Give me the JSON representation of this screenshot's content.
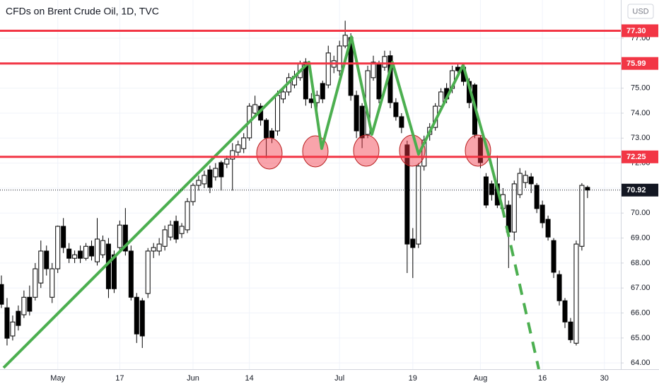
{
  "chart_data": {
    "type": "candlestick",
    "title": "CFDs on Brent Crude Oil, 1D, TVC",
    "unit": "USD",
    "categories": [
      null,
      null,
      null,
      null,
      null,
      null,
      null,
      null,
      null,
      null,
      "May",
      null,
      null,
      null,
      null,
      null,
      null,
      null,
      null,
      null,
      null,
      "17",
      null,
      null,
      null,
      null,
      null,
      null,
      null,
      null,
      null,
      null,
      null,
      null,
      "Jun",
      null,
      null,
      null,
      null,
      null,
      null,
      null,
      null,
      null,
      "14",
      null,
      null,
      null,
      null,
      null,
      null,
      null,
      null,
      null,
      null,
      null,
      null,
      null,
      null,
      null,
      "Jul",
      null,
      null,
      null,
      null,
      null,
      null,
      null,
      null,
      null,
      null,
      null,
      null,
      "19",
      null,
      null,
      null,
      null,
      null,
      null,
      null,
      null,
      null,
      null,
      null,
      "Aug",
      null,
      null,
      null,
      null,
      null,
      null,
      null,
      null,
      null,
      null,
      "16",
      null,
      null,
      null,
      null,
      null,
      null,
      null,
      null,
      null,
      null,
      "30",
      null,
      null
    ],
    "open": [
      67.14,
      66.21,
      65.08,
      66.07,
      65.93,
      66.63,
      66.63,
      67.2,
      68.48,
      66.63,
      67.77,
      69.47,
      68.56,
      68.19,
      68.48,
      68.19,
      68.67,
      68.05,
      68.33,
      68.76,
      68.33,
      68.62,
      69.52,
      68.48,
      66.63,
      66.49,
      66.78,
      68.48,
      68.48,
      68.67,
      69.04,
      69.67,
      69.18,
      69.33,
      70.46,
      71.11,
      71.17,
      71.73,
      71.45,
      72.02,
      71.96,
      72.16,
      72.44,
      72.58,
      73.01,
      74.0,
      74.28,
      73.72,
      73.29,
      73.29,
      74.57,
      74.85,
      75.13,
      75.42,
      76.04,
      74.57,
      74.42,
      75.19,
      75.13,
      75.84,
      75.7,
      76.69,
      77.03,
      74.71,
      74.28,
      73.15,
      75.42,
      75.98,
      75.84,
      76.3,
      74.42,
      73.86,
      72.73,
      68.96,
      68.76,
      71.88,
      73.15,
      73.43,
      74.28,
      74.99,
      74.99,
      75.84,
      75.84,
      75.27,
      75.13,
      73.01,
      71.45,
      71.17,
      71.17,
      70.18,
      70.32,
      69.24,
      70.74,
      71.22,
      71.45,
      71.11,
      70.32,
      69.75,
      68.9,
      67.54,
      66.49,
      65.64,
      64.79,
      68.67,
      71.03,
      null,
      null,
      null,
      null,
      null
    ],
    "high": [
      67.5,
      66.6,
      65.9,
      66.3,
      66.9,
      67.1,
      68.0,
      68.9,
      68.7,
      68.0,
      69.5,
      69.8,
      68.8,
      68.5,
      68.7,
      68.8,
      68.9,
      69.8,
      69.1,
      69.0,
      68.5,
      69.7,
      70.2,
      68.7,
      66.8,
      66.6,
      68.6,
      68.8,
      69.0,
      69.5,
      69.7,
      69.9,
      69.6,
      70.6,
      71.2,
      71.5,
      71.7,
      71.9,
      72.0,
      72.1,
      72.3,
      72.8,
      72.9,
      73.2,
      74.4,
      74.7,
      74.4,
      73.8,
      73.4,
      74.9,
      75.0,
      75.6,
      75.7,
      76.1,
      76.2,
      74.8,
      74.9,
      75.3,
      76.7,
      76.3,
      76.9,
      77.7,
      77.2,
      74.9,
      74.4,
      75.9,
      76.3,
      76.1,
      76.5,
      76.5,
      74.6,
      74.0,
      72.9,
      69.4,
      72.0,
      73.1,
      73.6,
      74.4,
      75.0,
      75.2,
      75.9,
      76.0,
      75.9,
      75.4,
      75.2,
      73.1,
      71.6,
      71.3,
      72.3,
      71.0,
      70.5,
      71.3,
      71.8,
      71.7,
      71.6,
      71.2,
      70.5,
      69.9,
      69.0,
      67.7,
      66.6,
      65.8,
      68.9,
      71.2,
      71.1,
      null,
      null,
      null,
      null,
      null
    ],
    "low": [
      66.2,
      64.7,
      64.9,
      65.3,
      65.8,
      65.9,
      66.5,
      67.0,
      67.5,
      66.4,
      67.6,
      68.4,
      68.0,
      68.0,
      68.0,
      68.1,
      68.1,
      67.9,
      68.2,
      66.6,
      66.8,
      68.4,
      68.3,
      66.5,
      64.8,
      64.6,
      66.6,
      68.2,
      68.3,
      68.5,
      68.9,
      68.8,
      69.0,
      69.2,
      70.3,
      70.9,
      71.0,
      70.8,
      71.3,
      70.9,
      71.8,
      70.9,
      72.3,
      72.4,
      72.9,
      73.9,
      73.5,
      72.2,
      72.8,
      73.1,
      74.4,
      74.7,
      75.0,
      75.3,
      74.3,
      74.2,
      74.0,
      74.4,
      75.0,
      75.6,
      75.5,
      76.6,
      74.5,
      73.0,
      72.6,
      73.0,
      75.3,
      74.4,
      75.7,
      74.2,
      73.7,
      73.2,
      67.6,
      67.4,
      68.6,
      71.7,
      72.9,
      73.3,
      74.1,
      74.4,
      74.8,
      75.5,
      75.1,
      74.2,
      73.0,
      71.8,
      70.2,
      70.5,
      70.2,
      70.0,
      67.8,
      68.9,
      70.6,
      71.0,
      70.8,
      70.0,
      69.4,
      68.9,
      67.4,
      66.3,
      65.4,
      64.8,
      64.7,
      68.5,
      70.6,
      null,
      null,
      null,
      null,
      null
    ],
    "close": [
      66.35,
      64.99,
      65.64,
      65.5,
      66.63,
      66.07,
      67.77,
      68.48,
      67.77,
      67.77,
      69.47,
      68.62,
      68.19,
      68.33,
      68.19,
      68.67,
      68.28,
      68.96,
      68.9,
      66.97,
      66.97,
      69.52,
      68.48,
      66.63,
      65.16,
      65.08,
      68.48,
      68.62,
      68.76,
      69.33,
      69.52,
      68.96,
      69.47,
      70.46,
      71.11,
      71.31,
      71.51,
      71.03,
      71.79,
      71.45,
      72.16,
      72.5,
      72.73,
      73.01,
      74.28,
      74.34,
      73.72,
      73.01,
      73.01,
      74.71,
      74.85,
      75.42,
      75.47,
      75.98,
      74.57,
      74.42,
      74.71,
      74.57,
      76.41,
      76.1,
      76.69,
      77.12,
      74.71,
      73.29,
      73.01,
      75.7,
      76.04,
      74.57,
      76.27,
      74.42,
      73.86,
      73.43,
      68.76,
      68.62,
      71.88,
      72.92,
      73.43,
      74.28,
      74.85,
      74.57,
      75.7,
      75.7,
      75.27,
      74.42,
      73.15,
      72.02,
      70.32,
      70.74,
      70.32,
      70.74,
      69.24,
      71.17,
      71.59,
      71.51,
      71.17,
      70.18,
      69.61,
      69.04,
      67.63,
      66.49,
      65.64,
      64.93,
      68.76,
      71.11,
      70.92,
      null,
      null,
      null,
      null,
      null
    ],
    "up_color": "#ffffff",
    "down_color": "#000000",
    "edge_color": "#000000",
    "ylim": [
      63.75,
      78.53
    ],
    "yticks": [
      {
        "value": 64,
        "label": "64.00"
      },
      {
        "value": 65,
        "label": "65.00"
      },
      {
        "value": 66,
        "label": "66.00"
      },
      {
        "value": 67,
        "label": "67.00"
      },
      {
        "value": 68,
        "label": "68.00"
      },
      {
        "value": 69,
        "label": "69.00"
      },
      {
        "value": 70,
        "label": "70.00"
      },
      {
        "value": 71,
        "label": "71.00"
      },
      {
        "value": 72,
        "label": "72.00"
      },
      {
        "value": 73,
        "label": "73.00"
      },
      {
        "value": 74,
        "label": "74.00"
      },
      {
        "value": 75,
        "label": "75.00"
      },
      {
        "value": 77,
        "label": "77.00"
      }
    ],
    "grid": true,
    "levels": [
      {
        "value": 77.3,
        "label": "77.30"
      },
      75.99,
      72.25
    ],
    "level_color": "#f23645",
    "last_price": 70.92
  }
}
